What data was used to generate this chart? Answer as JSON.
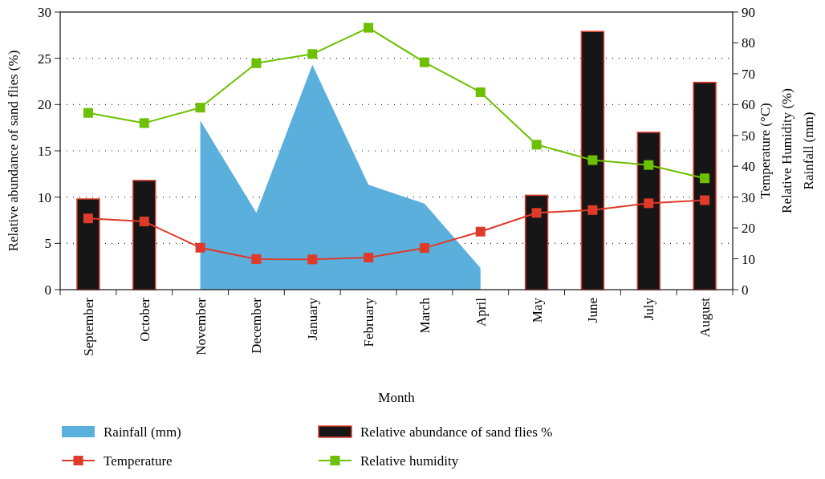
{
  "chart_data": {
    "type": "bar",
    "xlabel": "Month",
    "ylabel": "Relative abundance of sand flies (%)",
    "y2label": "Temperature (°C)\nRelative Humidity (%)\nRainfall (mm)",
    "categories": [
      "September",
      "October",
      "November",
      "December",
      "January",
      "February",
      "March",
      "April",
      "May",
      "June",
      "July",
      "August"
    ],
    "series": [
      {
        "name": "Rainfall (mm)",
        "type": "area",
        "axis": "y2",
        "color": "#5aafdc",
        "values": [
          null,
          null,
          54.8,
          24.9,
          72.9,
          34,
          27.9,
          7,
          null,
          null,
          null,
          null
        ]
      },
      {
        "name": "Relative abundance of sand flies %",
        "color": "#161616",
        "values": [
          9.8,
          11.8,
          null,
          null,
          null,
          null,
          null,
          null,
          10.2,
          27.9,
          17,
          22.4
        ]
      },
      {
        "name": "Temperature",
        "type": "line",
        "axis": "y2",
        "color": "#e03a2a",
        "marker": "square",
        "values": [
          23.1,
          22.1,
          13.6,
          9.9,
          9.8,
          10.4,
          13.5,
          18.8,
          24.9,
          25.8,
          28,
          29
        ]
      },
      {
        "name": "Relative humidity",
        "type": "line",
        "axis": "y2",
        "color": "#6cc000",
        "marker": "square",
        "values": [
          57.3,
          54,
          59,
          73.4,
          76.4,
          84.9,
          73.7,
          64,
          47,
          42,
          40.4,
          36.1
        ]
      }
    ],
    "ylim": [
      0,
      30
    ],
    "yticks": [
      0,
      5,
      10,
      15,
      20,
      25,
      30
    ],
    "y2lim": [
      0,
      90
    ],
    "y2ticks": [
      0,
      10,
      20,
      30,
      40,
      50,
      60,
      70,
      80,
      90
    ],
    "grid": "y",
    "legend": "bottom"
  }
}
